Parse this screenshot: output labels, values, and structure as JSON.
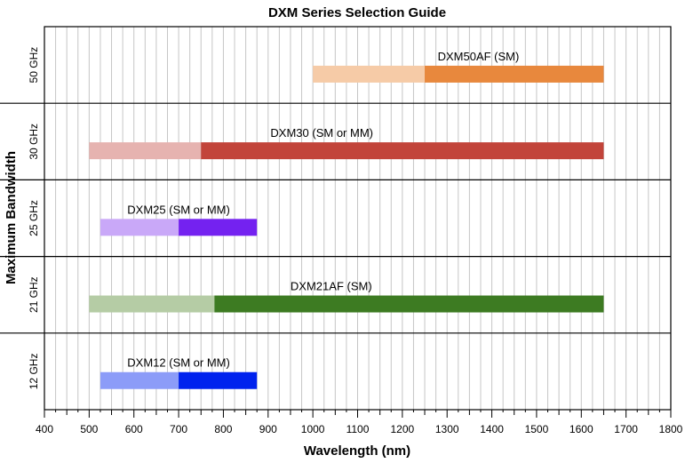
{
  "chart_data": {
    "type": "bar",
    "title": "DXM Series Selection Guide",
    "xlabel": "Wavelength (nm)",
    "ylabel": "Maximum Bandwidth",
    "xlim": [
      400,
      1800
    ],
    "xticks": [
      400,
      500,
      600,
      700,
      800,
      900,
      1000,
      1100,
      1200,
      1300,
      1400,
      1500,
      1600,
      1700,
      1800
    ],
    "grid": true,
    "series": [
      {
        "name": "DXM50AF (SM)",
        "bandwidth": "50 GHz",
        "extended_range": [
          1000,
          1250
        ],
        "optimal_range": [
          1250,
          1650
        ],
        "light_color": "#f6cba7",
        "dark_color": "#e8883d"
      },
      {
        "name": "DXM30 (SM or MM)",
        "bandwidth": "30 GHz",
        "extended_range": [
          500,
          750
        ],
        "optimal_range": [
          750,
          1650
        ],
        "light_color": "#e6b3b0",
        "dark_color": "#c2443a"
      },
      {
        "name": "DXM25 (SM or MM)",
        "bandwidth": "25 GHz",
        "extended_range": [
          525,
          700
        ],
        "optimal_range": [
          700,
          875
        ],
        "light_color": "#c9a8f8",
        "dark_color": "#7422f0"
      },
      {
        "name": "DXM21AF (SM)",
        "bandwidth": "21 GHz",
        "extended_range": [
          500,
          780
        ],
        "optimal_range": [
          780,
          1650
        ],
        "light_color": "#b5cca5",
        "dark_color": "#3d7b22"
      },
      {
        "name": "DXM12 (SM or MM)",
        "bandwidth": "12 GHz",
        "extended_range": [
          525,
          700
        ],
        "optimal_range": [
          700,
          875
        ],
        "light_color": "#8c9cf8",
        "dark_color": "#0022ee"
      }
    ]
  }
}
